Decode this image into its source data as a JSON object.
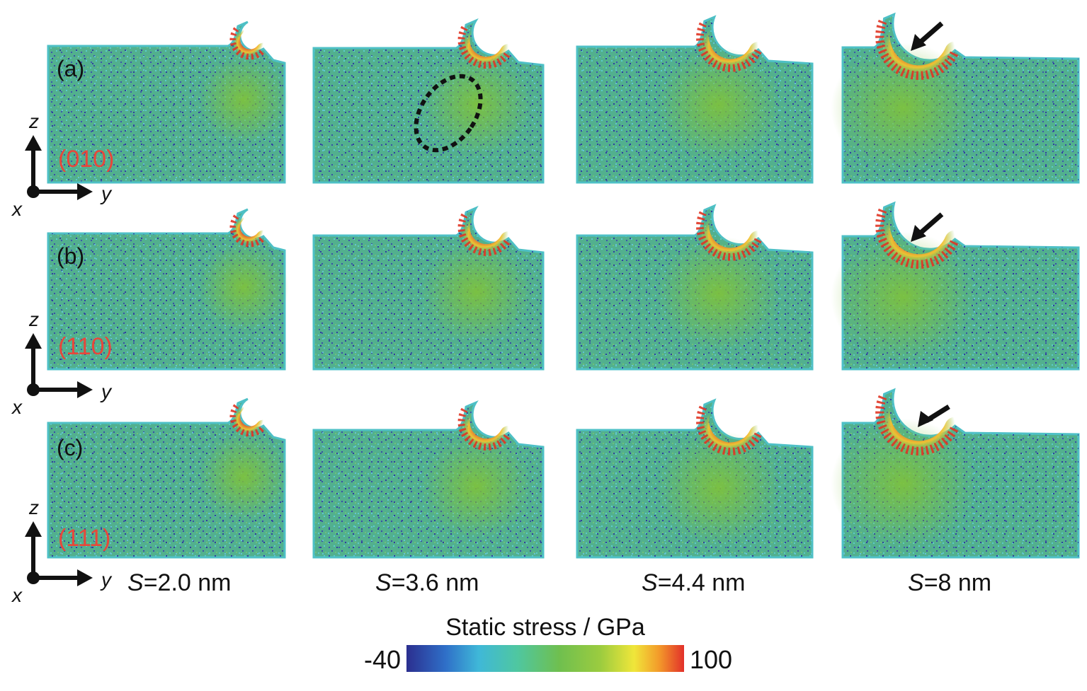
{
  "rows": [
    {
      "label": "(a)",
      "plane": "(010)"
    },
    {
      "label": "(b)",
      "plane": "(110)"
    },
    {
      "label": "(c)",
      "plane": "(111)"
    }
  ],
  "columns": [
    {
      "prefix": "S",
      "value": "=2.0 nm"
    },
    {
      "prefix": "S",
      "value": "=3.6 nm"
    },
    {
      "prefix": "S",
      "value": "=4.4 nm"
    },
    {
      "prefix": "S",
      "value": "=8 nm"
    }
  ],
  "axes": {
    "z": "z",
    "y": "y",
    "x": "x"
  },
  "colorbar": {
    "title": "Static stress / GPa",
    "min_label": "-40",
    "max_label": "100",
    "min": -40,
    "max": 100,
    "colors": [
      "#2b2f8f",
      "#2f6fc8",
      "#3fb8d8",
      "#4fc7a0",
      "#6fbf4f",
      "#9ccc3f",
      "#f0e63a",
      "#f39a2a",
      "#e2302a"
    ]
  },
  "colors": {
    "substrate": "#4fb38a",
    "edge": "#4ec0c6",
    "strained": "#7bbf3a",
    "hot": "#e03524",
    "warm": "#f3c330",
    "compressed": "#3d4fa8",
    "plane_label": "#e8473a"
  }
}
